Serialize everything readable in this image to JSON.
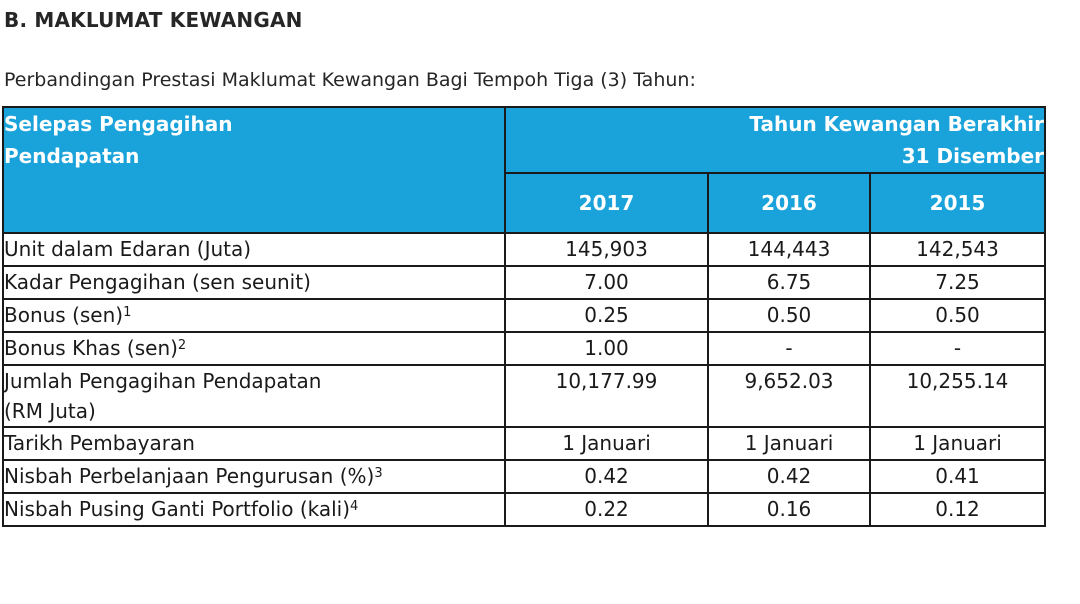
{
  "heading": "B. MAKLUMAT KEWANGAN",
  "subtitle": "Perbandingan Prestasi Maklumat Kewangan Bagi Tempoh Tiga (3) Tahun:",
  "table": {
    "header_label_line1": "Selepas Pengagihan",
    "header_label_line2": "Pendapatan",
    "period_line1": "Tahun Kewangan Berakhir",
    "period_line2": "31 Disember",
    "years": [
      "2017",
      "2016",
      "2015"
    ],
    "rows": [
      {
        "label": "Unit dalam Edaran (Juta)",
        "sup": "",
        "values": [
          "145,903",
          "144,443",
          "142,543"
        ]
      },
      {
        "label": "Kadar Pengagihan (sen seunit)",
        "sup": "",
        "values": [
          "7.00",
          "6.75",
          "7.25"
        ]
      },
      {
        "label": "Bonus (sen)",
        "sup": "1",
        "values": [
          "0.25",
          "0.50",
          "0.50"
        ]
      },
      {
        "label": "Bonus Khas (sen)",
        "sup": "2",
        "values": [
          "1.00",
          "-",
          "-"
        ]
      },
      {
        "label_line1": "Jumlah Pengagihan Pendapatan",
        "label_line2": "(RM Juta)",
        "sup": "",
        "values": [
          "10,177.99",
          "9,652.03",
          "10,255.14"
        ]
      },
      {
        "label": "Tarikh Pembayaran",
        "sup": "",
        "values": [
          "1 Januari",
          "1 Januari",
          "1 Januari"
        ]
      },
      {
        "label": "Nisbah Perbelanjaan Pengurusan (%)",
        "sup": "3",
        "values": [
          "0.42",
          "0.42",
          "0.41"
        ]
      },
      {
        "label": "Nisbah Pusing Ganti Portfolio (kali)",
        "sup": "4",
        "values": [
          "0.22",
          "0.16",
          "0.12"
        ]
      }
    ]
  }
}
